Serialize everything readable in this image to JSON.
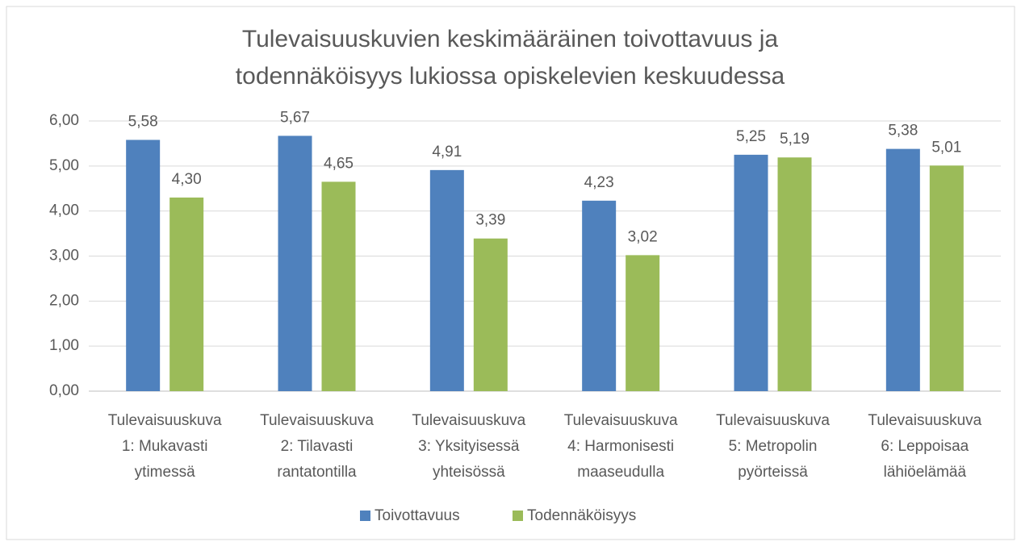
{
  "chart_data": {
    "type": "bar",
    "title": [
      "Tulevaisuuskuvien keskimääräinen toivottavuus ja",
      "todennäköisyys lukiossa opiskelevien keskuudessa"
    ],
    "categories": [
      "Tulevaisuuskuva 1: Mukavasti ytimessä",
      "Tulevaisuuskuva 2: Tilavasti rantatontilla",
      "Tulevaisuuskuva 3: Yksityisessä yhteisössä",
      "Tulevaisuuskuva 4: Harmonisesti maaseudulla",
      "Tulevaisuuskuva 5: Metropolin pyörteissä",
      "Tulevaisuuskuva 6: Leppoisaa lähiöelämää"
    ],
    "series": [
      {
        "name": "Toivottavuus",
        "color": "#4f81bd",
        "values": [
          5.58,
          5.67,
          4.91,
          4.23,
          5.25,
          5.38
        ],
        "value_labels": [
          "5,58",
          "5,67",
          "4,91",
          "4,23",
          "5,25",
          "5,38"
        ]
      },
      {
        "name": "Todennäköisyys",
        "color": "#9bbb59",
        "values": [
          4.3,
          4.65,
          3.39,
          3.02,
          5.19,
          5.01
        ],
        "value_labels": [
          "4,30",
          "4,65",
          "3,39",
          "3,02",
          "5,19",
          "5,01"
        ]
      }
    ],
    "ylim": [
      0,
      6
    ],
    "yticks": [
      {
        "value": 0,
        "label": "0,00"
      },
      {
        "value": 1,
        "label": "1,00"
      },
      {
        "value": 2,
        "label": "2,00"
      },
      {
        "value": 3,
        "label": "3,00"
      },
      {
        "value": 4,
        "label": "4,00"
      },
      {
        "value": 5,
        "label": "5,00"
      },
      {
        "value": 6,
        "label": "6,00"
      }
    ],
    "grid": true,
    "legend": "bottom"
  }
}
